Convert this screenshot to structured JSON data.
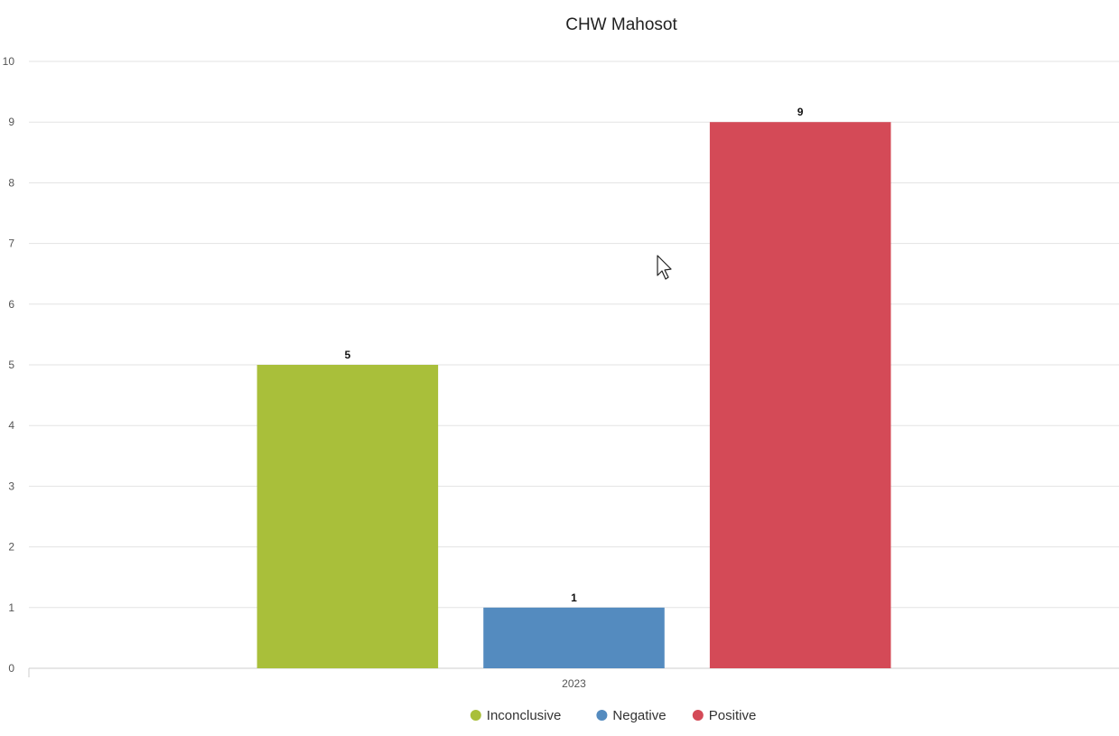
{
  "chart_data": {
    "type": "bar",
    "title": "CHW Mahosot",
    "categories": [
      "2023"
    ],
    "series": [
      {
        "name": "Inconclusive",
        "values": [
          5
        ],
        "color": "#a9bf3a"
      },
      {
        "name": "Negative",
        "values": [
          1
        ],
        "color": "#548bbf"
      },
      {
        "name": "Positive",
        "values": [
          9
        ],
        "color": "#d44a57"
      }
    ],
    "ylim": [
      0,
      10
    ],
    "yticks": [
      0,
      1,
      2,
      3,
      4,
      5,
      6,
      7,
      8,
      9,
      10
    ],
    "xlabel": "",
    "ylabel": "",
    "grid": true,
    "legend_position": "bottom-center",
    "data_labels": true
  },
  "cursor_icon": "mouse-pointer-icon"
}
